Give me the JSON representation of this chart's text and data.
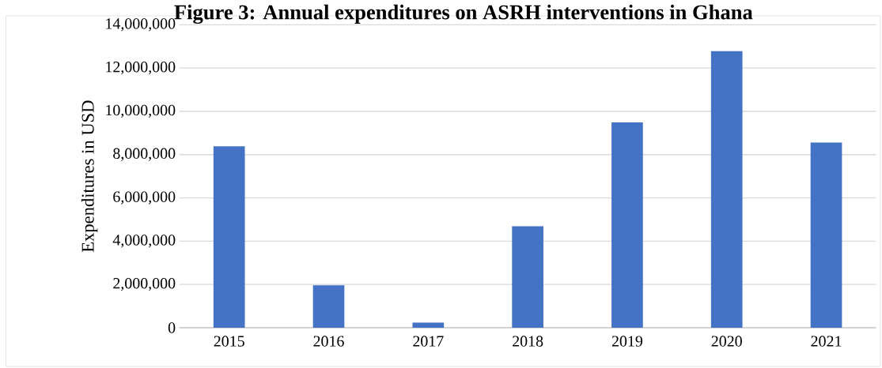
{
  "chart_data": {
    "type": "bar",
    "title": "Figure 3: Annual expenditures on ASRH interventions in Ghana",
    "ylabel": "Expenditures in USD",
    "categories": [
      "2015",
      "2016",
      "2017",
      "2018",
      "2019",
      "2020",
      "2021"
    ],
    "values": [
      8380000,
      1960000,
      240000,
      4690000,
      9490000,
      12780000,
      8560000
    ],
    "color": "#4472c4",
    "ylim": [
      0,
      14000000
    ],
    "yticks": [
      {
        "value": 0,
        "label": "0"
      },
      {
        "value": 2000000,
        "label": "2,000,000"
      },
      {
        "value": 4000000,
        "label": "4,000,000"
      },
      {
        "value": 6000000,
        "label": "6,000,000"
      },
      {
        "value": 8000000,
        "label": "8,000,000"
      },
      {
        "value": 10000000,
        "label": "10,000,000"
      },
      {
        "value": 12000000,
        "label": "12,000,000"
      },
      {
        "value": 14000000,
        "label": "14,000,000"
      }
    ],
    "grid": "y"
  }
}
